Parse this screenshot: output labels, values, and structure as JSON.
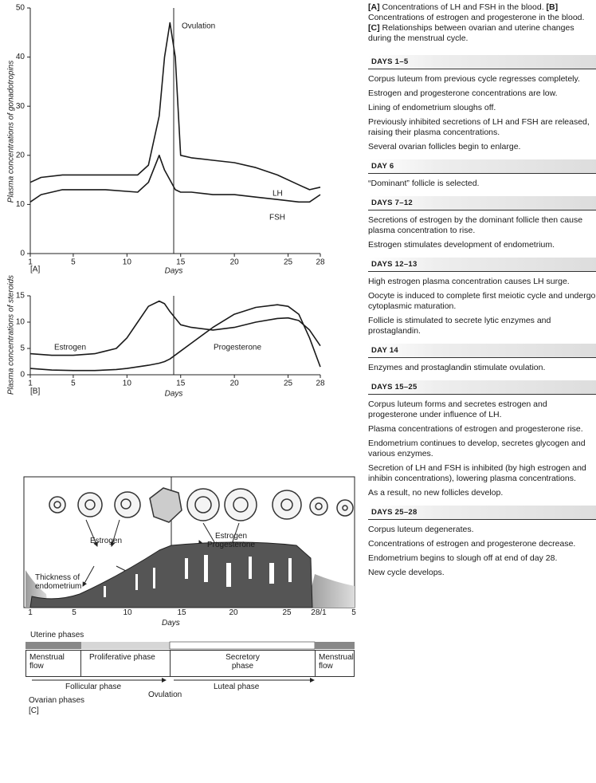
{
  "chart_data": [
    {
      "type": "line",
      "panel": "[A]",
      "ylabel": "Plasma concentrations of gonadotropins",
      "xlabel": "Days",
      "annotation": "Ovulation",
      "x": [
        1,
        2,
        4,
        8,
        11,
        12,
        13,
        13.5,
        14,
        14.5,
        15,
        16,
        18,
        20,
        22,
        24,
        26,
        27,
        28
      ],
      "series": [
        {
          "name": "LH",
          "color": "#1a1a1a",
          "values": [
            14.5,
            15.5,
            16,
            16,
            16,
            18,
            28,
            40,
            47,
            40,
            20,
            19.5,
            19,
            18.5,
            17.5,
            16,
            14,
            13,
            13.5
          ]
        },
        {
          "name": "FSH",
          "color": "#1a1a1a",
          "values": [
            10.5,
            12,
            13,
            13,
            12.5,
            14.5,
            20,
            17,
            15,
            13,
            12.5,
            12.5,
            12,
            12,
            11.5,
            11,
            10.5,
            10.5,
            12
          ]
        }
      ],
      "xlim": [
        1,
        28
      ],
      "xticks": [
        1,
        5,
        10,
        15,
        20,
        25,
        28
      ],
      "ylim": [
        0,
        50
      ],
      "yticks": [
        0,
        10,
        20,
        30,
        40,
        50
      ]
    },
    {
      "type": "line",
      "panel": "[B]",
      "ylabel": "Plasma concentrations of steroids",
      "xlabel": "Days",
      "x": [
        1,
        3,
        5,
        7,
        9,
        10,
        11,
        12,
        13,
        13.5,
        14,
        15,
        16,
        18,
        20,
        22,
        24,
        25,
        26,
        27,
        28
      ],
      "series": [
        {
          "name": "Estrogen",
          "color": "#1a1a1a",
          "values": [
            4,
            3.7,
            3.7,
            4,
            5,
            7,
            10,
            13,
            14,
            13.5,
            12,
            9.5,
            9,
            8.5,
            9,
            10,
            10.7,
            10.8,
            10.3,
            8.5,
            5.5
          ]
        },
        {
          "name": "Progesterone",
          "color": "#1a1a1a",
          "values": [
            1.2,
            0.9,
            0.8,
            0.8,
            1,
            1.2,
            1.5,
            1.8,
            2.2,
            2.5,
            3,
            4.5,
            6,
            9,
            11.5,
            12.8,
            13.3,
            13,
            11.5,
            7,
            1.5
          ]
        }
      ],
      "xlim": [
        1,
        28
      ],
      "xticks": [
        1,
        5,
        10,
        15,
        20,
        25,
        28
      ],
      "ylim": [
        0,
        15
      ],
      "yticks": [
        0,
        5,
        10,
        15
      ]
    }
  ],
  "diagram_c": {
    "hormone_estrogen": "Estrogen",
    "hormone_both": [
      "Estrogen",
      "Progesterone"
    ],
    "thickness": [
      "Thickness of",
      "endometrium"
    ],
    "day_ticks": [
      "1",
      "5",
      "10",
      "15",
      "20",
      "25",
      "28/1",
      "5"
    ],
    "xlabel": "Days",
    "uterine_title": "Uterine phases",
    "uterine_phases": [
      "Menstrual flow",
      "Proliferative phase",
      "Secretory phase",
      "Menstrual flow"
    ],
    "ovarian_phases": [
      "Follicular phase",
      "Luteal phase"
    ],
    "ovulation": "Ovulation",
    "ovarian_title": "Ovarian phases",
    "panel": "[C]"
  },
  "caption": [
    {
      "label": "[A]",
      "text": "Concentrations of LH and FSH in the blood."
    },
    {
      "label": "[B]",
      "text": "Concentrations of estrogen and progesterone in the blood."
    },
    {
      "label": "[C]",
      "text": "Relationships between ovarian and uterine changes during the menstrual cycle."
    }
  ],
  "timeline": [
    {
      "heading": "DAYS 1–5",
      "items": [
        "Corpus luteum from previous cycle regresses completely.",
        "Estrogen and progesterone concentrations are low.",
        "Lining of endometrium sloughs off.",
        "Previously inhibited secretions of LH and FSH are released, raising their plasma concentrations.",
        "Several ovarian follicles begin to enlarge."
      ]
    },
    {
      "heading": "DAY 6",
      "items": [
        "“Dominant” follicle is selected."
      ]
    },
    {
      "heading": "DAYS 7–12",
      "items": [
        "Secretions of estrogen by the dominant follicle then cause plasma concentration to rise.",
        "Estrogen stimulates development of endometrium."
      ]
    },
    {
      "heading": "DAYS 12–13",
      "items": [
        "High estrogen plasma concentration causes LH surge.",
        "Oocyte is induced to complete first meiotic cycle and undergo cytoplasmic maturation.",
        "Follicle is stimulated to secrete lytic enzymes and prostaglandin."
      ]
    },
    {
      "heading": "DAY 14",
      "items": [
        "Enzymes and prostaglandin stimulate ovulation."
      ]
    },
    {
      "heading": "DAYS 15–25",
      "items": [
        "Corpus luteum forms and secretes estrogen and progesterone under influence of LH.",
        "Plasma concentrations of estrogen and progesterone rise.",
        "Endometrium continues to develop, secretes glycogen and various enzymes.",
        "Secretion of LH and FSH is inhibited (by high estrogen and inhibin concentrations), lowering plasma concentrations.",
        "As a result, no new follicles develop."
      ]
    },
    {
      "heading": "DAYS 25–28",
      "items": [
        "Corpus luteum degenerates.",
        "Concentrations of estrogen and progesterone decrease.",
        "Endometrium begins to slough off at end of day 28.",
        "New cycle develops."
      ]
    }
  ]
}
